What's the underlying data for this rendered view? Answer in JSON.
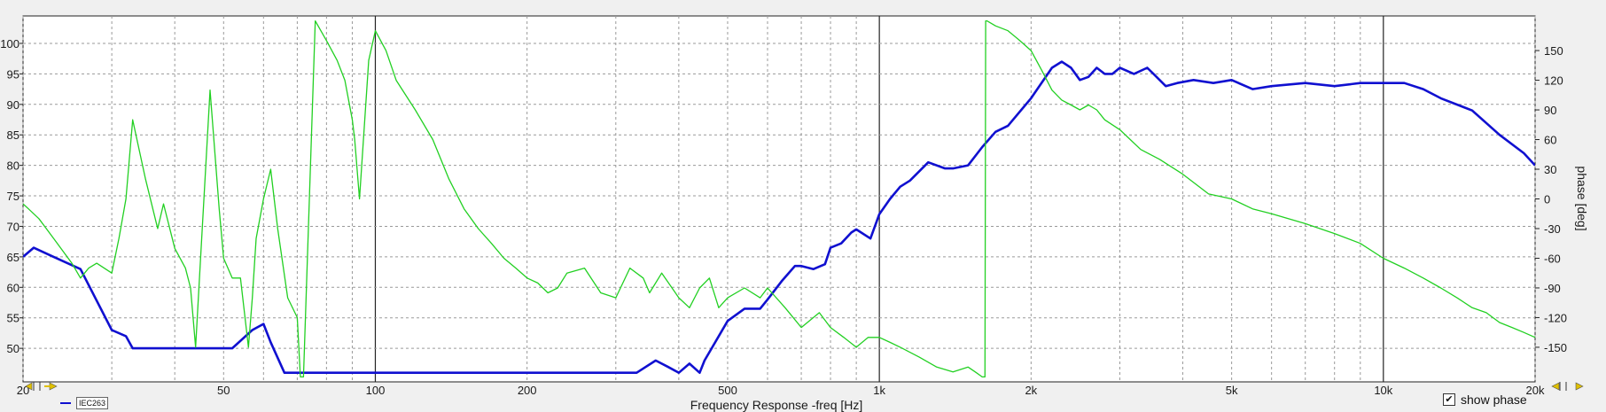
{
  "chart_data": {
    "type": "line",
    "xscale": "log",
    "xlim": [
      20,
      20000
    ],
    "ylim": [
      45,
      105
    ],
    "y2lim": [
      -180,
      180
    ],
    "xlabel": "Frequency Response -freq [Hz]",
    "ylabel": "",
    "y2label": "phase [deg]",
    "grid": true,
    "x_ticks": [
      {
        "value": 20,
        "label": "20"
      },
      {
        "value": 50,
        "label": "50"
      },
      {
        "value": 100,
        "label": "100"
      },
      {
        "value": 200,
        "label": "200"
      },
      {
        "value": 500,
        "label": "500"
      },
      {
        "value": 1000,
        "label": "1k"
      },
      {
        "value": 2000,
        "label": "2k"
      },
      {
        "value": 5000,
        "label": "5k"
      },
      {
        "value": 10000,
        "label": "10k"
      },
      {
        "value": 20000,
        "label": "20k"
      }
    ],
    "y_ticks": [
      50,
      55,
      60,
      65,
      70,
      75,
      80,
      85,
      90,
      95,
      100
    ],
    "y2_ticks": [
      -150,
      -120,
      -90,
      -60,
      -30,
      0,
      30,
      60,
      90,
      120,
      150
    ],
    "series": [
      {
        "name": "IEC263",
        "axis": "left",
        "color": "#1010d0",
        "x": [
          20,
          21,
          23,
          26,
          30,
          32,
          33,
          52,
          57,
          60,
          62,
          66,
          300,
          330,
          360,
          380,
          400,
          420,
          440,
          450,
          500,
          540,
          580,
          600,
          640,
          680,
          700,
          740,
          780,
          800,
          840,
          880,
          900,
          960,
          1000,
          1050,
          1100,
          1150,
          1250,
          1350,
          1400,
          1500,
          1600,
          1700,
          1800,
          2000,
          2200,
          2300,
          2400,
          2500,
          2600,
          2700,
          2800,
          2900,
          3000,
          3200,
          3400,
          3500,
          3700,
          3900,
          4200,
          4600,
          5000,
          5500,
          6000,
          7000,
          8000,
          9000,
          10000,
          11000,
          12000,
          13000,
          15000,
          17000,
          19000,
          20000
        ],
        "y": [
          65,
          66.5,
          65,
          63,
          53,
          52,
          50,
          50,
          53,
          54,
          51,
          46,
          46,
          46,
          48,
          47,
          46,
          47.5,
          46,
          48,
          54.5,
          56.5,
          56.5,
          58,
          61,
          63.5,
          63.5,
          63,
          63.8,
          66.5,
          67.2,
          69,
          69.5,
          68,
          72,
          74.5,
          76.5,
          77.5,
          80.5,
          79.5,
          79.5,
          80,
          83,
          85.5,
          86.5,
          91,
          96,
          97,
          96,
          94,
          94.5,
          96,
          95,
          95,
          96,
          95,
          96,
          95,
          93,
          93.5,
          94,
          93.5,
          94,
          92.5,
          93,
          93.5,
          93,
          93.5,
          93.5,
          93.5,
          92.5,
          91,
          89,
          85,
          82,
          80
        ]
      },
      {
        "name": "",
        "axis": "right",
        "color": "#22d022",
        "x": [
          20,
          20.5,
          21.5,
          23,
          25,
          26,
          27,
          28,
          30,
          31,
          32,
          33,
          35,
          37,
          38,
          40,
          42,
          43,
          44,
          45,
          47,
          49,
          50,
          52,
          54,
          56,
          57,
          58,
          60,
          62,
          64,
          67,
          70,
          71,
          72,
          76,
          80,
          84,
          87,
          90,
          91,
          93,
          97,
          100,
          105,
          110,
          120,
          130,
          140,
          150,
          160,
          170,
          180,
          190,
          200,
          210,
          220,
          230,
          240,
          260,
          280,
          300,
          320,
          340,
          350,
          370,
          400,
          420,
          440,
          460,
          480,
          500,
          540,
          580,
          600,
          650,
          700,
          760,
          800,
          850,
          900,
          950,
          1000,
          1050,
          1100,
          1200,
          1300,
          1400,
          1500,
          1550,
          1600,
          1620,
          1625,
          1630,
          1635,
          1700,
          1800,
          1900,
          2000,
          2100,
          2200,
          2300,
          2400,
          2500,
          2600,
          2700,
          2800,
          3000,
          3300,
          3600,
          4000,
          4500,
          5000,
          5500,
          6000,
          7000,
          8000,
          9000,
          10000,
          11000,
          12000,
          13000,
          14000,
          15000,
          16000,
          17000,
          18000,
          19000,
          20000
        ],
        "y": [
          -5,
          -10,
          -20,
          -40,
          -65,
          -80,
          -70,
          -65,
          -75,
          -40,
          0,
          80,
          20,
          -30,
          -5,
          -50,
          -70,
          -90,
          -150,
          -60,
          110,
          -10,
          -60,
          -80,
          -80,
          -150,
          -100,
          -40,
          0,
          30,
          -30,
          -100,
          -120,
          -180,
          -180,
          180,
          160,
          140,
          120,
          80,
          60,
          0,
          140,
          170,
          150,
          120,
          90,
          60,
          20,
          -10,
          -30,
          -45,
          -60,
          -70,
          -80,
          -85,
          -95,
          -90,
          -75,
          -70,
          -95,
          -100,
          -70,
          -80,
          -95,
          -75,
          -100,
          -110,
          -90,
          -80,
          -110,
          -100,
          -90,
          -100,
          -90,
          -110,
          -130,
          -115,
          -130,
          -140,
          -150,
          -140,
          -140,
          -145,
          -150,
          -160,
          -170,
          -175,
          -170,
          -175,
          -180,
          -180,
          180,
          180,
          180,
          175,
          170,
          160,
          150,
          130,
          110,
          100,
          95,
          90,
          95,
          90,
          80,
          70,
          50,
          40,
          25,
          5,
          0,
          -10,
          -15,
          -25,
          -35,
          -45,
          -60,
          -70,
          -80,
          -90,
          -100,
          -110,
          -115,
          -125,
          -130,
          -135,
          -140
        ]
      }
    ]
  },
  "controls": {
    "show_phase_label": "show phase",
    "show_phase_checked": "✔",
    "legend_tag": "IEC263",
    "arrow_left_icon": "scroll-left-icon",
    "arrow_right_icon": "scroll-right-icon"
  }
}
